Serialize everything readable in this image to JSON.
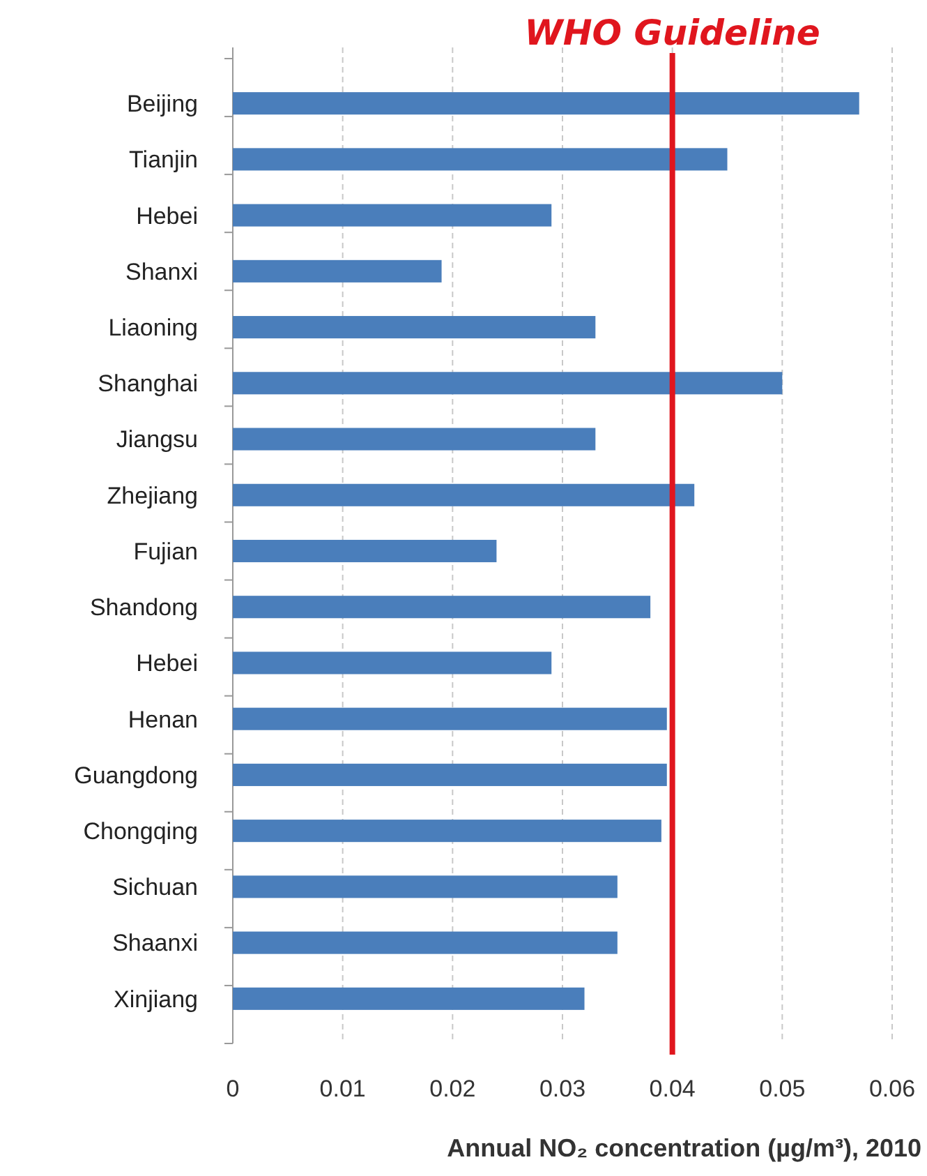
{
  "chart_data": {
    "type": "bar",
    "orientation": "horizontal",
    "xlabel": "Annual NO₂ concentration (µg/m³), 2010",
    "categories": [
      "Beijing",
      "Tianjin",
      "Hebei",
      "Shanxi",
      "Liaoning",
      "Shanghai",
      "Jiangsu",
      "Zhejiang",
      "Fujian",
      "Shandong",
      "Hebei",
      "Henan",
      "Guangdong",
      "Chongqing",
      "Sichuan",
      "Shaanxi",
      "Xinjiang"
    ],
    "values": [
      0.057,
      0.045,
      0.029,
      0.019,
      0.033,
      0.05,
      0.033,
      0.042,
      0.024,
      0.038,
      0.029,
      0.0395,
      0.0395,
      0.039,
      0.035,
      0.035,
      0.032
    ],
    "color": "#4a7ebb",
    "xlim": [
      0,
      0.06
    ],
    "xticks": [
      0,
      0.01,
      0.02,
      0.03,
      0.04,
      0.05,
      0.06
    ],
    "grid": "x",
    "ref_lines": [
      {
        "axis": "x",
        "value": 0.04,
        "label": "WHO Guideline",
        "color": "#e0161e"
      }
    ]
  }
}
